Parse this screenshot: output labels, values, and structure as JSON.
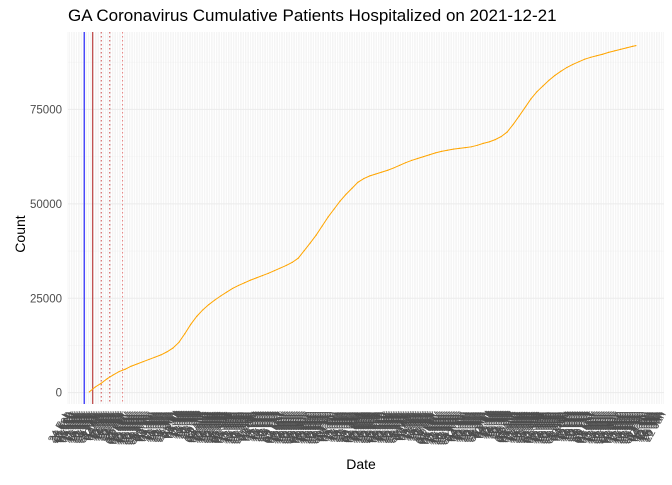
{
  "colors": {
    "background": "#ffffff",
    "grid_major": "#ebebeb",
    "grid_minor": "#f5f5f5",
    "series": "#ffa500",
    "vline_blue": "#0000ff",
    "vline_red": "#b22222",
    "vline_dotted": "#e88080",
    "tick_label": "#4d4d4d"
  },
  "chart_data": {
    "type": "line",
    "title": "GA Coronavirus Cumulative Patients Hospitalized on 2021-12-21",
    "xlabel": "Date",
    "ylabel": "Count",
    "ylim": [
      -3000,
      95500
    ],
    "xlim": [
      "2020-02-24",
      "2022-01-23"
    ],
    "y_ticks": [
      0,
      25000,
      50000,
      75000
    ],
    "y_tick_labels": [
      "0",
      "25000",
      "50000",
      "75000"
    ],
    "grid": true,
    "legend": "none",
    "x_tick_every_days": 2,
    "x_tick_label_format": "%d %b",
    "x_tick_label_rotation": -60,
    "vlines": [
      {
        "date": "2020-03-14",
        "style": "solid",
        "color": "blue"
      },
      {
        "date": "2020-03-24",
        "style": "solid",
        "color": "red"
      },
      {
        "date": "2020-04-03",
        "style": "dotted",
        "color": "red"
      },
      {
        "date": "2020-04-13",
        "style": "dotted",
        "color": "red"
      },
      {
        "date": "2020-04-28",
        "style": "dotted",
        "color": "pink"
      }
    ],
    "series": [
      {
        "x": [
          "2020-03-20",
          "2020-03-27",
          "2020-04-03",
          "2020-04-10",
          "2020-04-17",
          "2020-04-24",
          "2020-05-01",
          "2020-05-08",
          "2020-05-15",
          "2020-05-22",
          "2020-05-29",
          "2020-06-05",
          "2020-06-12",
          "2020-06-19",
          "2020-06-26",
          "2020-07-03",
          "2020-07-10",
          "2020-07-17",
          "2020-07-24",
          "2020-07-31",
          "2020-08-07",
          "2020-08-14",
          "2020-08-21",
          "2020-08-28",
          "2020-09-04",
          "2020-09-11",
          "2020-09-18",
          "2020-09-25",
          "2020-10-02",
          "2020-10-09",
          "2020-10-16",
          "2020-10-23",
          "2020-10-30",
          "2020-11-06",
          "2020-11-13",
          "2020-11-20",
          "2020-11-27",
          "2020-12-04",
          "2020-12-11",
          "2020-12-18",
          "2020-12-25",
          "2021-01-01",
          "2021-01-08",
          "2021-01-15",
          "2021-01-22",
          "2021-01-29",
          "2021-02-05",
          "2021-02-12",
          "2021-02-19",
          "2021-02-26",
          "2021-03-05",
          "2021-03-12",
          "2021-03-19",
          "2021-03-26",
          "2021-04-02",
          "2021-04-09",
          "2021-04-16",
          "2021-04-23",
          "2021-04-30",
          "2021-05-07",
          "2021-05-14",
          "2021-05-21",
          "2021-05-28",
          "2021-06-04",
          "2021-06-11",
          "2021-06-18",
          "2021-06-25",
          "2021-07-02",
          "2021-07-09",
          "2021-07-16",
          "2021-07-23",
          "2021-07-30",
          "2021-08-06",
          "2021-08-13",
          "2021-08-20",
          "2021-08-27",
          "2021-09-03",
          "2021-09-10",
          "2021-09-17",
          "2021-09-24",
          "2021-10-01",
          "2021-10-08",
          "2021-10-15",
          "2021-10-22",
          "2021-10-29",
          "2021-11-05",
          "2021-11-12",
          "2021-11-19",
          "2021-11-26",
          "2021-12-03",
          "2021-12-10",
          "2021-12-17",
          "2021-12-21"
        ],
        "values": [
          200,
          1500,
          2500,
          3700,
          4700,
          5600,
          6200,
          7000,
          7600,
          8200,
          8800,
          9400,
          10000,
          10800,
          11800,
          13300,
          15600,
          18100,
          20200,
          21900,
          23300,
          24500,
          25600,
          26600,
          27600,
          28400,
          29100,
          29800,
          30400,
          31000,
          31600,
          32300,
          33000,
          33700,
          34500,
          35600,
          37600,
          39600,
          41700,
          44100,
          46500,
          48600,
          50700,
          52500,
          54100,
          55700,
          56700,
          57400,
          57900,
          58400,
          58900,
          59500,
          60200,
          60900,
          61500,
          62000,
          62500,
          63000,
          63500,
          63900,
          64200,
          64500,
          64700,
          64900,
          65100,
          65500,
          66000,
          66400,
          67000,
          67800,
          69000,
          71000,
          73200,
          75500,
          77800,
          79700,
          81200,
          82700,
          84000,
          85100,
          86100,
          86900,
          87600,
          88300,
          88800,
          89200,
          89600,
          90100,
          90500,
          90900,
          91300,
          91700,
          91900
        ]
      }
    ]
  }
}
